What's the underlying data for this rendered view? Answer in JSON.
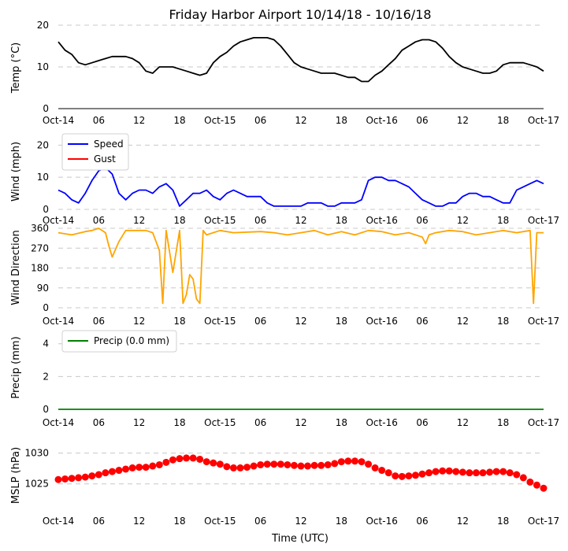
{
  "title": "Friday Harbor Airport 10/14/18 - 10/16/18",
  "xlabel": "Time (UTC)",
  "colors": {
    "temp": "#000000",
    "speed": "#0000ff",
    "gust": "#ff0000",
    "wdir": "#ffa500",
    "precip": "#008000",
    "mslp": "#ff0000",
    "grid": "#c8c8c8"
  },
  "time_ticks": [
    "Oct-14",
    "06",
    "12",
    "18",
    "Oct-15",
    "06",
    "12",
    "18",
    "Oct-16",
    "06",
    "12",
    "18",
    "Oct-17"
  ],
  "chart_data": [
    {
      "type": "line",
      "ylabel": "Temp (°C)",
      "ylim": [
        0,
        20
      ],
      "yticks": [
        "0",
        "10",
        "20"
      ],
      "grid": true,
      "series": [
        {
          "color": "#000000",
          "x": [
            0,
            1,
            2,
            3,
            4,
            5,
            6,
            7,
            8,
            9,
            10,
            11,
            12,
            13,
            14,
            15,
            16,
            17,
            18,
            19,
            20,
            21,
            22,
            23,
            24,
            25,
            26,
            27,
            28,
            29,
            30,
            31,
            32,
            33,
            34,
            35,
            36,
            37,
            38,
            39,
            40,
            41,
            42,
            43,
            44,
            45,
            46,
            47,
            48,
            49,
            50,
            51,
            52,
            53,
            54,
            55,
            56,
            57,
            58,
            59,
            60,
            61,
            62,
            63,
            64,
            65,
            66,
            67,
            68,
            69,
            70,
            71,
            72
          ],
          "values": [
            16,
            14,
            13,
            11,
            10.5,
            11,
            11.5,
            12,
            12.5,
            12.5,
            12.5,
            12,
            11,
            9,
            8.5,
            10,
            10,
            10,
            9.5,
            9,
            8.5,
            8,
            8.5,
            11,
            12.5,
            13.5,
            15,
            16,
            16.5,
            17,
            17,
            17,
            16.5,
            15,
            13,
            11,
            10,
            9.5,
            9,
            8.5,
            8.5,
            8.5,
            8,
            7.5,
            7.5,
            6.5,
            6.5,
            8,
            9,
            10.5,
            12,
            14,
            15,
            16,
            16.5,
            16.5,
            16,
            14.5,
            12.5,
            11,
            10,
            9.5,
            9,
            8.5,
            8.5,
            9,
            10.5,
            11,
            11,
            11,
            10.5,
            10,
            9
          ]
        }
      ]
    },
    {
      "type": "line",
      "ylabel": "Wind (mph)",
      "ylim": [
        0,
        24
      ],
      "yticks": [
        "0",
        "10",
        "20"
      ],
      "grid": true,
      "legend": "top-left",
      "series": [
        {
          "name": "Speed",
          "color": "#0000ff",
          "x": [
            0,
            1,
            2,
            3,
            4,
            5,
            6,
            7,
            8,
            9,
            10,
            11,
            12,
            13,
            14,
            15,
            16,
            17,
            18,
            19,
            20,
            21,
            22,
            23,
            24,
            25,
            26,
            27,
            28,
            29,
            30,
            31,
            32,
            33,
            34,
            35,
            36,
            37,
            38,
            39,
            40,
            41,
            42,
            43,
            44,
            45,
            46,
            47,
            48,
            49,
            50,
            51,
            52,
            53,
            54,
            55,
            56,
            57,
            58,
            59,
            60,
            61,
            62,
            63,
            64,
            65,
            66,
            67,
            68,
            69,
            70,
            71,
            72
          ],
          "values": [
            6,
            5,
            3,
            2,
            5,
            9,
            12,
            13,
            11,
            5,
            3,
            5,
            6,
            6,
            5,
            7,
            8,
            6,
            1,
            3,
            5,
            5,
            6,
            4,
            3,
            5,
            6,
            5,
            4,
            4,
            4,
            2,
            1,
            1,
            1,
            1,
            1,
            2,
            2,
            2,
            1,
            1,
            2,
            2,
            2,
            3,
            9,
            10,
            10,
            9,
            9,
            8,
            7,
            5,
            3,
            2,
            1,
            1,
            2,
            2,
            4,
            5,
            5,
            4,
            4,
            3,
            2,
            2,
            6,
            7,
            8,
            9,
            8
          ]
        },
        {
          "name": "Gust",
          "color": "#ff0000",
          "x": [],
          "values": []
        }
      ]
    },
    {
      "type": "line",
      "ylabel": "Wind Direction",
      "ylim": [
        0,
        360
      ],
      "yticks": [
        "0",
        "90",
        "180",
        "270",
        "360"
      ],
      "grid": true,
      "series": [
        {
          "color": "#ffa500",
          "x": [
            0,
            2,
            4,
            5,
            6,
            7,
            7.5,
            8,
            9,
            10,
            12,
            13,
            14,
            15,
            15.5,
            16,
            17,
            18,
            18.5,
            19,
            19.5,
            20,
            20.5,
            21,
            21.5,
            22,
            24,
            26,
            30,
            32,
            34,
            36,
            38,
            40,
            42,
            44,
            46,
            48,
            50,
            52,
            54,
            54.5,
            55,
            56,
            58,
            60,
            62,
            64,
            66,
            68,
            70,
            70.5,
            71,
            72
          ],
          "values": [
            340,
            330,
            345,
            350,
            360,
            340,
            280,
            230,
            300,
            350,
            350,
            350,
            340,
            260,
            20,
            350,
            160,
            350,
            20,
            60,
            150,
            130,
            40,
            20,
            350,
            330,
            350,
            340,
            345,
            340,
            330,
            340,
            350,
            330,
            345,
            330,
            350,
            345,
            330,
            340,
            320,
            290,
            330,
            340,
            350,
            345,
            330,
            340,
            350,
            340,
            350,
            20,
            340,
            340
          ]
        }
      ]
    },
    {
      "type": "line",
      "ylabel": "Precip (mm)",
      "ylim": [
        0,
        4.9
      ],
      "yticks": [
        "0",
        "2",
        "4"
      ],
      "grid": true,
      "legend": "top-left",
      "series": [
        {
          "name": "Precip (0.0 mm)",
          "color": "#008000",
          "x": [
            0,
            72
          ],
          "values": [
            0,
            0
          ]
        }
      ]
    },
    {
      "type": "scatter",
      "ylabel": "MSLP (hPa)",
      "ylim": [
        1021,
        1032
      ],
      "yticks": [
        "1025",
        "1030"
      ],
      "grid": true,
      "series": [
        {
          "color": "#ff0000",
          "x": [
            0,
            1,
            2,
            3,
            4,
            5,
            6,
            7,
            8,
            9,
            10,
            11,
            12,
            13,
            14,
            15,
            16,
            17,
            18,
            19,
            20,
            21,
            22,
            23,
            24,
            25,
            26,
            27,
            28,
            29,
            30,
            31,
            32,
            33,
            34,
            35,
            36,
            37,
            38,
            39,
            40,
            41,
            42,
            43,
            44,
            45,
            46,
            47,
            48,
            49,
            50,
            51,
            52,
            53,
            54,
            55,
            56,
            57,
            58,
            59,
            60,
            61,
            62,
            63,
            64,
            65,
            66,
            67,
            68,
            69,
            70,
            71,
            72
          ],
          "values": [
            1025.7,
            1025.8,
            1025.9,
            1026,
            1026.1,
            1026.3,
            1026.5,
            1026.8,
            1027,
            1027.2,
            1027.4,
            1027.6,
            1027.7,
            1027.7,
            1027.9,
            1028.1,
            1028.5,
            1028.9,
            1029.1,
            1029.2,
            1029.2,
            1029.0,
            1028.6,
            1028.4,
            1028.2,
            1027.8,
            1027.6,
            1027.6,
            1027.7,
            1027.9,
            1028.1,
            1028.2,
            1028.2,
            1028.2,
            1028.1,
            1028.0,
            1027.9,
            1027.9,
            1028.0,
            1028.0,
            1028.1,
            1028.3,
            1028.6,
            1028.7,
            1028.7,
            1028.6,
            1028.2,
            1027.6,
            1027.2,
            1026.8,
            1026.3,
            1026.2,
            1026.3,
            1026.4,
            1026.6,
            1026.8,
            1027.0,
            1027.1,
            1027.1,
            1027.0,
            1026.9,
            1026.8,
            1026.8,
            1026.8,
            1026.9,
            1027.0,
            1027.0,
            1026.8,
            1026.5,
            1026.0,
            1025.3,
            1024.8,
            1024.3
          ]
        }
      ]
    }
  ]
}
